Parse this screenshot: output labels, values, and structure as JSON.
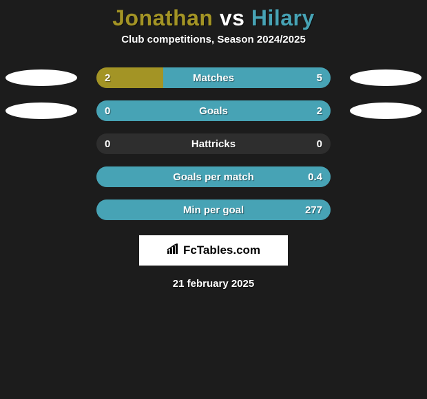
{
  "title": {
    "player1": "Jonathan",
    "vs": "vs",
    "player2": "Hilary",
    "player1_color": "#a39425",
    "vs_color": "#ffffff",
    "player2_color": "#47a3b5",
    "fontsize": 32
  },
  "subtitle": "Club competitions, Season 2024/2025",
  "colors": {
    "background": "#1c1c1c",
    "player1_bar": "#a39425",
    "player2_bar": "#47a3b5",
    "track": "#2e2e2e",
    "text": "#ffffff",
    "badge": "#ffffff"
  },
  "bar_geometry": {
    "track_width": 340,
    "track_height": 30,
    "border_radius": 15,
    "row_gap": 18
  },
  "stats": [
    {
      "label": "Matches",
      "left_val": "2",
      "right_val": "5",
      "left_pct": 28.6,
      "right_pct": 71.4,
      "show_left_badge": true,
      "show_right_badge": true
    },
    {
      "label": "Goals",
      "left_val": "0",
      "right_val": "2",
      "left_pct": 0.0,
      "right_pct": 100.0,
      "show_left_badge": true,
      "show_right_badge": true
    },
    {
      "label": "Hattricks",
      "left_val": "0",
      "right_val": "0",
      "left_pct": 0.0,
      "right_pct": 0.0,
      "show_left_badge": false,
      "show_right_badge": false
    },
    {
      "label": "Goals per match",
      "left_val": "",
      "right_val": "0.4",
      "left_pct": 0.0,
      "right_pct": 100.0,
      "show_left_badge": false,
      "show_right_badge": false
    },
    {
      "label": "Min per goal",
      "left_val": "",
      "right_val": "277",
      "left_pct": 0.0,
      "right_pct": 100.0,
      "show_left_badge": false,
      "show_right_badge": false
    }
  ],
  "logo": {
    "text": "FcTables.com",
    "box_bg": "#ffffff",
    "text_color": "#000000"
  },
  "date": "21 february 2025"
}
